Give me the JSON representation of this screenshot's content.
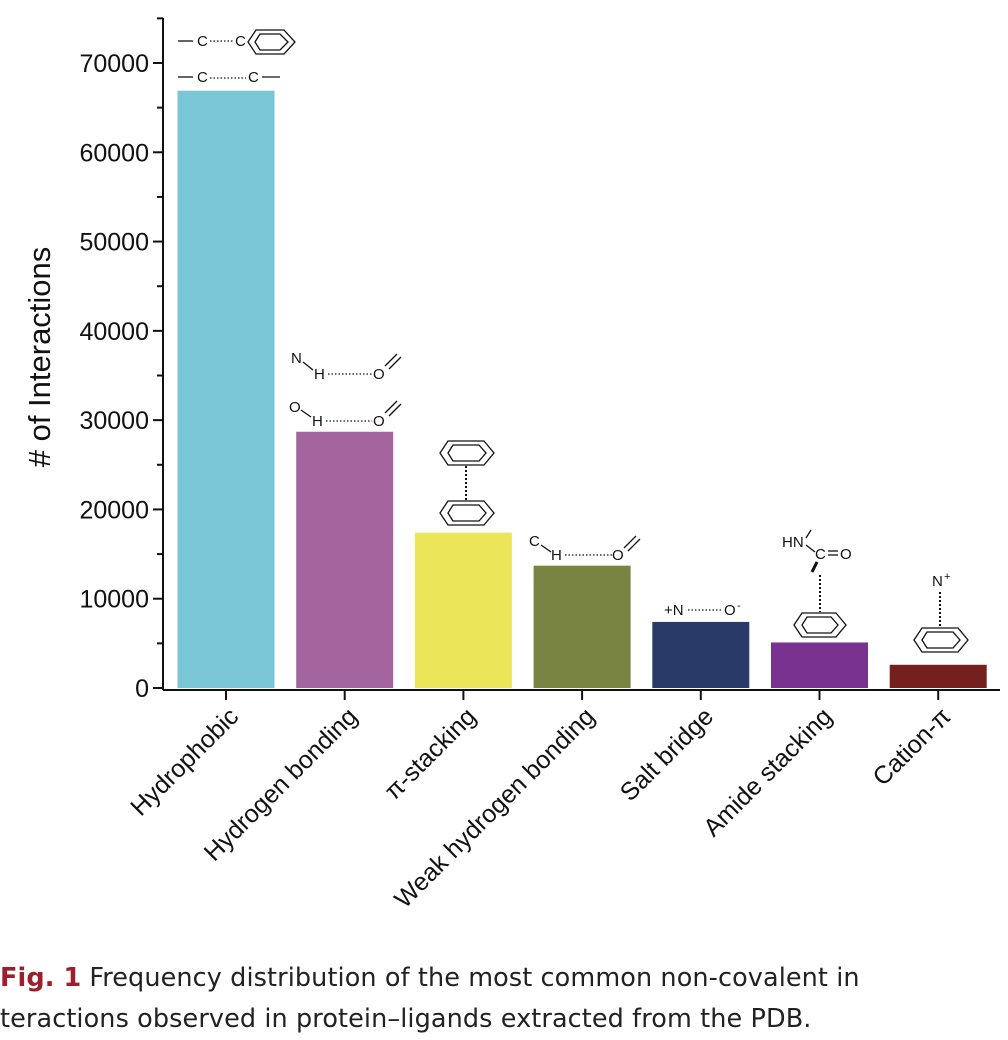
{
  "chart_data": {
    "type": "bar",
    "categories": [
      "Hydrophobic",
      "Hydrogen bonding",
      "π-stacking",
      "Weak hydrogen bonding",
      "Salt bridge",
      "Amide stacking",
      "Cation-π"
    ],
    "values": [
      66900,
      28700,
      17400,
      13700,
      7400,
      5100,
      2600
    ],
    "colors": [
      "#7ac5d6",
      "#a4649e",
      "#ebe55a",
      "#7a8442",
      "#293a68",
      "#7a3290",
      "#74201e"
    ],
    "ylabel": "# of Interactions",
    "ylim": [
      0,
      72000
    ],
    "yticks": [
      0,
      10000,
      20000,
      30000,
      40000,
      50000,
      60000,
      70000
    ],
    "ytick_labels": [
      "0",
      "10000",
      "20000",
      "30000",
      "40000",
      "50000",
      "60000",
      "70000"
    ],
    "grid": false,
    "annotations": {
      "c_c": [
        "C",
        "C"
      ],
      "c_ring": [
        "C",
        "C"
      ],
      "nh_o": [
        "N",
        "H",
        "O"
      ],
      "oh_o": [
        "O",
        "H",
        "O"
      ],
      "ch_o": [
        "C",
        "H",
        "O"
      ],
      "salt": [
        "+N",
        "O",
        "-"
      ],
      "amide": [
        "HN",
        "C",
        "O"
      ],
      "cation": [
        "N",
        "+"
      ]
    }
  },
  "caption": {
    "label": "Fig. 1",
    "line1": "Frequency distribution of the most common non-covalent in",
    "line2": "teractions observed in protein–ligands extracted from the PDB."
  }
}
